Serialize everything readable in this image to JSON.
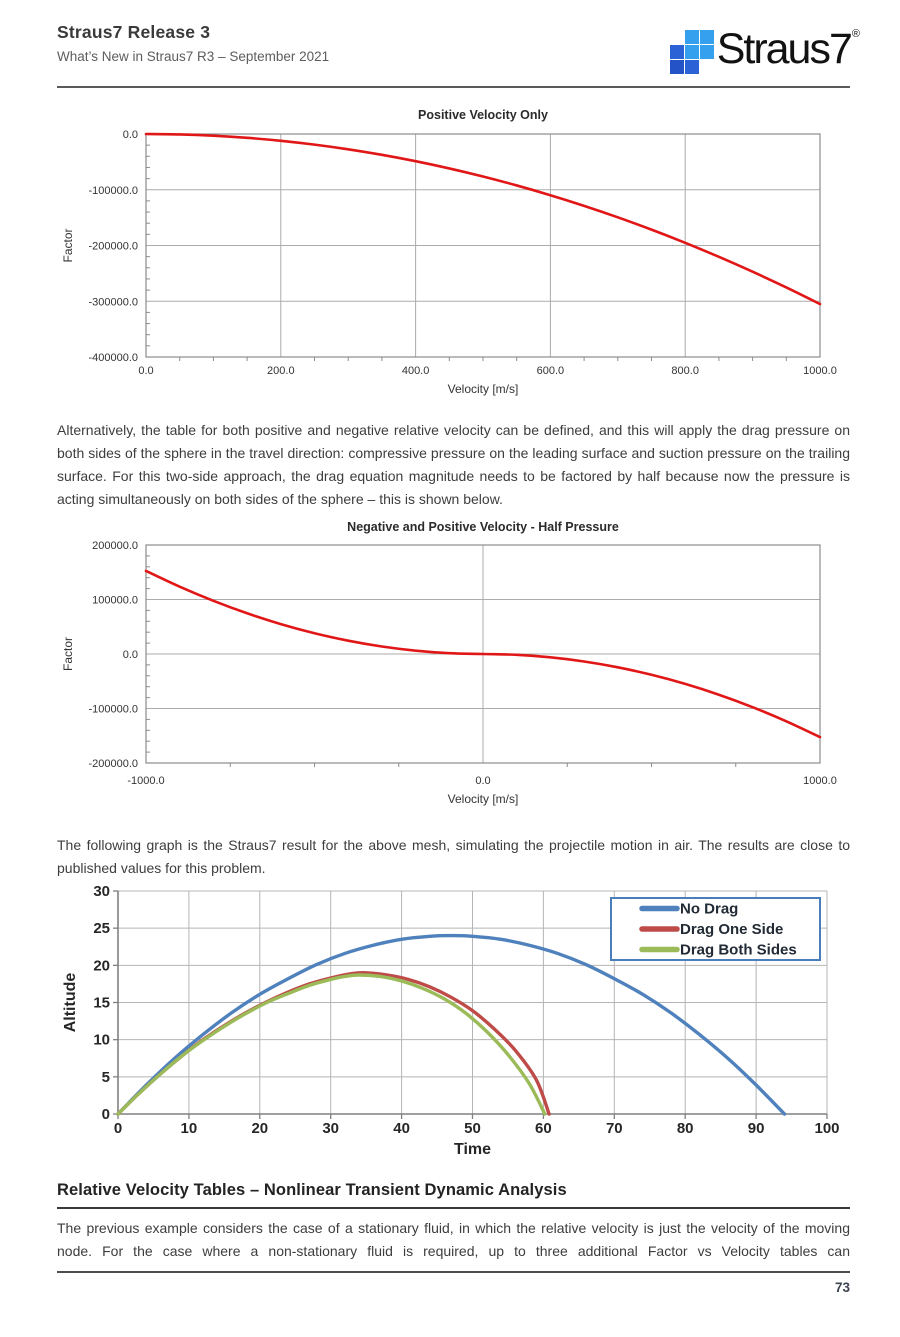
{
  "header": {
    "title": "Straus7 Release 3",
    "subtitle": "What’s New in Straus7 R3 – September 2021"
  },
  "logo": {
    "text": "Straus7",
    "reg": "®",
    "grid": [
      [
        null,
        "light",
        "light"
      ],
      [
        "mid",
        "light",
        "light"
      ],
      [
        "dark",
        "mid",
        null
      ]
    ],
    "colors": {
      "light": "#34a0ee",
      "mid": "#2b62d6",
      "dark": "#2353c6"
    }
  },
  "paragraphs": {
    "p1": "Alternatively, the table for both positive and negative relative velocity can be defined, and this will apply the drag pressure on both sides of the sphere in the travel direction: compressive pressure on the leading surface and suction pressure on the trailing surface.  For this two-side approach, the drag equation magnitude needs to be factored by half because now the pressure is acting simultaneously on both sides of the sphere – this is shown below.",
    "p2": "The following graph is the Straus7 result for the above mesh, simulating the projectile motion in air.  The results are close to published values for this problem.",
    "p3": "The previous example considers the case of a stationary fluid, in which the relative velocity is just the velocity of the moving node.  For the case where a non-stationary fluid is required, up to three additional Factor vs Velocity tables can"
  },
  "section_heading": "Relative Velocity Tables – Nonlinear Transient Dynamic Analysis",
  "footer": {
    "page_number": "73"
  },
  "chart_data": [
    {
      "type": "line",
      "title": "Positive Velocity Only",
      "xlabel": "Velocity [m/s]",
      "ylabel": "Factor",
      "xlim": [
        0,
        1000
      ],
      "ylim": [
        -400000,
        0
      ],
      "xticks": [
        0,
        200,
        400,
        600,
        800,
        1000
      ],
      "xtick_labels": [
        "0.0",
        "200.0",
        "400.0",
        "600.0",
        "800.0",
        "1000.0"
      ],
      "yticks": [
        0,
        -100000,
        -200000,
        -300000,
        -400000
      ],
      "ytick_labels": [
        "0.0",
        "-100000.0",
        "-200000.0",
        "-300000.0",
        "-400000.0"
      ],
      "xgrid": [
        200,
        400,
        600,
        800
      ],
      "ygrid": [
        -100000,
        -200000,
        -300000
      ],
      "xminor": 50,
      "yminor": 20000,
      "frame": "box",
      "grid_on": true,
      "legend": null,
      "series": [
        {
          "name": "Factor",
          "color": "#e11717",
          "width": 2.6,
          "points": [
            [
              0,
              0
            ],
            [
              50,
              -763
            ],
            [
              100,
              -3050
            ],
            [
              150,
              -6863
            ],
            [
              200,
              -12200
            ],
            [
              250,
              -19063
            ],
            [
              300,
              -27450
            ],
            [
              350,
              -37363
            ],
            [
              400,
              -48800
            ],
            [
              450,
              -61763
            ],
            [
              500,
              -76250
            ],
            [
              550,
              -92263
            ],
            [
              600,
              -109800
            ],
            [
              650,
              -128863
            ],
            [
              700,
              -149450
            ],
            [
              750,
              -171563
            ],
            [
              800,
              -195200
            ],
            [
              850,
              -220363
            ],
            [
              900,
              -247050
            ],
            [
              950,
              -275263
            ],
            [
              1000,
              -305000
            ]
          ]
        }
      ]
    },
    {
      "type": "line",
      "title": "Negative and Positive Velocity - Half Pressure",
      "xlabel": "Velocity [m/s]",
      "ylabel": "Factor",
      "xlim": [
        -1000,
        1000
      ],
      "ylim": [
        -200000,
        200000
      ],
      "xticks": [
        -1000,
        0,
        1000
      ],
      "xtick_labels": [
        "-1000.0",
        "0.0",
        "1000.0"
      ],
      "yticks": [
        200000,
        100000,
        0,
        -100000,
        -200000
      ],
      "ytick_labels": [
        "200000.0",
        "100000.0",
        "0.0",
        "-100000.0",
        "-200000.0"
      ],
      "xgrid": [
        0
      ],
      "ygrid": [
        100000,
        0,
        -100000
      ],
      "xminor": 250,
      "yminor": 20000,
      "frame": "box",
      "grid_on": true,
      "legend": null,
      "series": [
        {
          "name": "Factor",
          "color": "#e11717",
          "width": 2.6,
          "points": [
            [
              -1000,
              152500
            ],
            [
              -900,
              123525
            ],
            [
              -800,
              97600
            ],
            [
              -700,
              74725
            ],
            [
              -600,
              54900
            ],
            [
              -500,
              38125
            ],
            [
              -400,
              24400
            ],
            [
              -300,
              13725
            ],
            [
              -200,
              6100
            ],
            [
              -100,
              1525
            ],
            [
              0,
              0
            ],
            [
              100,
              -1525
            ],
            [
              200,
              -6100
            ],
            [
              300,
              -13725
            ],
            [
              400,
              -24400
            ],
            [
              500,
              -38125
            ],
            [
              600,
              -54900
            ],
            [
              700,
              -74725
            ],
            [
              800,
              -97600
            ],
            [
              900,
              -123525
            ],
            [
              1000,
              -152500
            ]
          ]
        }
      ]
    },
    {
      "type": "line",
      "title": "",
      "xlabel": "Time",
      "ylabel": "Altitude",
      "xlim": [
        0,
        100
      ],
      "ylim": [
        0,
        30
      ],
      "xticks": [
        0,
        10,
        20,
        30,
        40,
        50,
        60,
        70,
        80,
        90,
        100
      ],
      "xtick_labels": [
        "0",
        "10",
        "20",
        "30",
        "40",
        "50",
        "60",
        "70",
        "80",
        "90",
        "100"
      ],
      "yticks": [
        0,
        5,
        10,
        15,
        20,
        25,
        30
      ],
      "ytick_labels": [
        "0",
        "5",
        "10",
        "15",
        "20",
        "25",
        "30"
      ],
      "xgrid": [
        10,
        20,
        30,
        40,
        50,
        60,
        70,
        80,
        90,
        100
      ],
      "ygrid": [
        5,
        10,
        15,
        20,
        25,
        30
      ],
      "xminor": null,
      "yminor": null,
      "frame": "axes",
      "grid_on": true,
      "legend": {
        "position": "top-right",
        "border_color": "#4a7ebb"
      },
      "series": [
        {
          "name": "No Drag",
          "color": "#4F81BD",
          "width": 3.4,
          "points": [
            [
              0,
              0
            ],
            [
              4,
              3.9
            ],
            [
              8,
              7.5
            ],
            [
              12,
              10.7
            ],
            [
              16,
              13.6
            ],
            [
              20,
              16.1
            ],
            [
              24,
              18.2
            ],
            [
              28,
              20.1
            ],
            [
              32,
              21.6
            ],
            [
              36,
              22.7
            ],
            [
              40,
              23.5
            ],
            [
              44,
              23.9
            ],
            [
              47,
              24
            ],
            [
              50,
              23.9
            ],
            [
              54,
              23.5
            ],
            [
              58,
              22.7
            ],
            [
              62,
              21.6
            ],
            [
              66,
              20.1
            ],
            [
              70,
              18.2
            ],
            [
              74,
              16.1
            ],
            [
              78,
              13.6
            ],
            [
              82,
              10.7
            ],
            [
              86,
              7.5
            ],
            [
              90,
              3.9
            ],
            [
              94,
              0
            ]
          ]
        },
        {
          "name": "Drag One Side",
          "color": "#BE4B48",
          "width": 3.4,
          "points": [
            [
              0,
              0
            ],
            [
              3,
              2.8
            ],
            [
              6,
              5.4
            ],
            [
              9,
              7.8
            ],
            [
              12,
              10.0
            ],
            [
              15,
              11.9
            ],
            [
              18,
              13.6
            ],
            [
              21,
              15.1
            ],
            [
              24,
              16.4
            ],
            [
              27,
              17.5
            ],
            [
              30,
              18.3
            ],
            [
              33,
              18.9
            ],
            [
              35,
              19.0
            ],
            [
              38,
              18.7
            ],
            [
              41,
              18.1
            ],
            [
              44,
              17.1
            ],
            [
              47,
              15.7
            ],
            [
              50,
              13.9
            ],
            [
              53,
              11.5
            ],
            [
              56,
              8.6
            ],
            [
              59,
              4.6
            ],
            [
              60.8,
              0
            ]
          ]
        },
        {
          "name": "Drag Both Sides",
          "color": "#9BBB59",
          "width": 3.4,
          "points": [
            [
              0,
              0
            ],
            [
              3,
              2.8
            ],
            [
              6,
              5.4
            ],
            [
              9,
              7.8
            ],
            [
              12,
              9.9
            ],
            [
              15,
              11.8
            ],
            [
              18,
              13.5
            ],
            [
              21,
              15.0
            ],
            [
              24,
              16.2
            ],
            [
              27,
              17.3
            ],
            [
              30,
              18.1
            ],
            [
              32,
              18.5
            ],
            [
              34,
              18.7
            ],
            [
              37,
              18.5
            ],
            [
              40,
              17.9
            ],
            [
              43,
              16.9
            ],
            [
              46,
              15.5
            ],
            [
              49,
              13.6
            ],
            [
              52,
              11.1
            ],
            [
              55,
              8.0
            ],
            [
              58,
              4.1
            ],
            [
              60.2,
              0
            ]
          ]
        }
      ]
    }
  ]
}
